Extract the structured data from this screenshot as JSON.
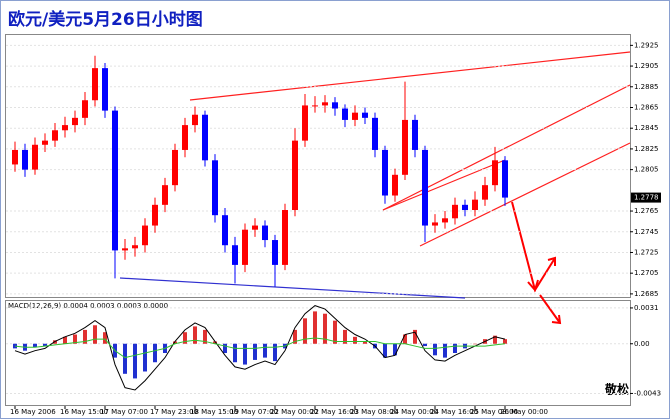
{
  "chart_data": [
    {
      "type": "candlestick",
      "title": "欧元/美元5月26日小时图",
      "signature": "敬松",
      "categories": [
        "16 May 2006",
        null,
        null,
        null,
        null,
        "16 May 15:00",
        null,
        null,
        null,
        "17 May 07:00",
        null,
        null,
        null,
        null,
        "17 May 23:00",
        null,
        null,
        null,
        "18 May 15:00",
        null,
        null,
        null,
        "19 May 07:00",
        null,
        null,
        null,
        "22 May 00:00",
        null,
        null,
        null,
        "22 May 16:00",
        null,
        null,
        null,
        "23 May 08:00",
        null,
        null,
        null,
        "24 May 00:00",
        null,
        null,
        null,
        "24 May 16:00",
        null,
        null,
        null,
        "25 May 08:00",
        null,
        null,
        "26 May 00:00"
      ],
      "open": [
        1.281,
        1.2824,
        1.2805,
        1.2829,
        1.2833,
        1.2843,
        1.2848,
        1.2855,
        1.2872,
        1.2903,
        1.2862,
        1.2727,
        1.2729,
        1.2732,
        1.2751,
        1.2771,
        1.279,
        1.2824,
        1.2848,
        1.2858,
        1.2814,
        1.2761,
        1.2732,
        1.2713,
        1.2747,
        1.2751,
        1.2737,
        1.2713,
        1.2766,
        1.2833,
        1.2867,
        1.2867,
        1.287,
        1.2864,
        1.2853,
        1.286,
        1.2855,
        1.2824,
        1.278,
        1.28,
        1.2853,
        1.2824,
        1.2751,
        1.2754,
        1.2758,
        1.2771,
        1.2766,
        1.2776,
        1.279,
        1.2814
      ],
      "high": [
        1.2832,
        1.283,
        1.2836,
        1.284,
        1.285,
        1.2856,
        1.2862,
        1.288,
        1.2915,
        1.2908,
        1.2866,
        1.2738,
        1.274,
        1.2758,
        1.2778,
        1.2797,
        1.283,
        1.2855,
        1.2866,
        1.2862,
        1.282,
        1.2768,
        1.274,
        1.2753,
        1.2758,
        1.2756,
        1.2742,
        1.2772,
        1.2845,
        1.2878,
        1.2876,
        1.2877,
        1.2875,
        1.2868,
        1.2867,
        1.2865,
        1.286,
        1.2828,
        1.2806,
        1.289,
        1.2858,
        1.2828,
        1.2762,
        1.2765,
        1.2778,
        1.2776,
        1.2784,
        1.2798,
        1.2827,
        1.2818
      ],
      "low": [
        1.2803,
        1.2798,
        1.28,
        1.2822,
        1.2827,
        1.2836,
        1.2841,
        1.2848,
        1.2866,
        1.2855,
        1.27,
        1.2718,
        1.2721,
        1.2725,
        1.2744,
        1.2764,
        1.2784,
        1.2817,
        1.2841,
        1.2808,
        1.2754,
        1.2725,
        1.2695,
        1.2706,
        1.274,
        1.273,
        1.2692,
        1.2708,
        1.276,
        1.2827,
        1.286,
        1.286,
        1.2857,
        1.2846,
        1.2847,
        1.2849,
        1.2817,
        1.2772,
        1.2774,
        1.2795,
        1.2817,
        1.2735,
        1.2744,
        1.2748,
        1.2752,
        1.276,
        1.276,
        1.277,
        1.2784,
        1.277
      ],
      "close": [
        1.2824,
        1.2805,
        1.2829,
        1.2833,
        1.2843,
        1.2848,
        1.2855,
        1.2872,
        1.2903,
        1.2862,
        1.2727,
        1.2729,
        1.2732,
        1.2751,
        1.2771,
        1.279,
        1.2824,
        1.2848,
        1.2858,
        1.2814,
        1.2761,
        1.2732,
        1.2713,
        1.2747,
        1.2751,
        1.2737,
        1.2713,
        1.2766,
        1.2833,
        1.2867,
        1.2867,
        1.287,
        1.2864,
        1.2853,
        1.286,
        1.2855,
        1.2824,
        1.278,
        1.28,
        1.2853,
        1.2824,
        1.2751,
        1.2754,
        1.2758,
        1.2771,
        1.2766,
        1.2776,
        1.279,
        1.2814,
        1.2778
      ],
      "up_color": "#ff0000",
      "down_color": "#0000ff",
      "last_price": 1.2778,
      "ylim": [
        1.2682,
        1.2935
      ],
      "yticks": [
        1.2925,
        1.2905,
        1.2885,
        1.2865,
        1.2845,
        1.2825,
        1.2805,
        1.2765,
        1.2745,
        1.2725,
        1.2705,
        1.2685
      ],
      "grid": true
    },
    {
      "type": "macd",
      "title": "MACD(12,26,9) 0.0004 0.0003 0.0003 0.0000",
      "histogram": [
        -0.0004,
        -0.0006,
        -0.0003,
        -0.0002,
        0.0003,
        0.0006,
        0.0008,
        0.0012,
        0.0016,
        0.001,
        -0.0012,
        -0.0026,
        -0.003,
        -0.0024,
        -0.0016,
        -0.0008,
        0.0002,
        0.001,
        0.0015,
        0.0012,
        0.0002,
        -0.0008,
        -0.0016,
        -0.0018,
        -0.0014,
        -0.0012,
        -0.0015,
        -0.0004,
        0.0012,
        0.0022,
        0.0028,
        0.0026,
        0.002,
        0.0012,
        0.0006,
        0.0002,
        -0.0004,
        -0.0012,
        -0.001,
        0.0008,
        0.0012,
        -0.0002,
        -0.001,
        -0.0012,
        -0.0008,
        -0.0004,
        0.0,
        0.0004,
        0.0007,
        0.0004
      ],
      "up_color": "#e03030",
      "down_color": "#2030d0",
      "series": [
        {
          "color": "#000000",
          "values": [
            -0.0006,
            -0.0009,
            -0.0006,
            -0.0004,
            0.0002,
            0.0006,
            0.0009,
            0.0014,
            0.002,
            0.0014,
            -0.0018,
            -0.0038,
            -0.004,
            -0.0032,
            -0.0022,
            -0.0012,
            0.0002,
            0.0012,
            0.0018,
            0.0014,
            0.0002,
            -0.001,
            -0.002,
            -0.0022,
            -0.0018,
            -0.0015,
            -0.0018,
            -0.0006,
            0.0014,
            0.0026,
            0.0033,
            0.003,
            0.0022,
            0.0014,
            0.0008,
            0.0004,
            -0.0002,
            -0.0012,
            -0.001,
            0.0008,
            0.001,
            -0.0006,
            -0.0014,
            -0.0015,
            -0.001,
            -0.0006,
            -0.0002,
            0.0002,
            0.0006,
            0.0004
          ]
        },
        {
          "color": "#30c030",
          "values": [
            -0.0002,
            -0.0003,
            -0.0003,
            -0.0002,
            -0.0001,
            0.0,
            0.0001,
            0.0002,
            0.0004,
            0.0004,
            -0.0006,
            -0.0012,
            -0.001,
            -0.0008,
            -0.0006,
            -0.0004,
            0.0,
            0.0002,
            0.0003,
            0.0002,
            0.0,
            -0.0002,
            -0.0004,
            -0.0004,
            -0.0004,
            -0.0003,
            -0.0003,
            -0.0002,
            0.0002,
            0.0004,
            0.0005,
            0.0004,
            0.0002,
            0.0002,
            0.0002,
            0.0002,
            0.0002,
            0.0,
            0.0,
            0.0,
            -0.0002,
            -0.0004,
            -0.0004,
            -0.0003,
            -0.0002,
            -0.0002,
            -0.0002,
            -0.0002,
            -0.0001,
            0.0
          ]
        }
      ],
      "ylim": [
        -0.0053,
        0.0037
      ],
      "yticks": [
        0.0031,
        {
          "value": 0,
          "label": "0.00"
        },
        -0.0043
      ]
    }
  ]
}
